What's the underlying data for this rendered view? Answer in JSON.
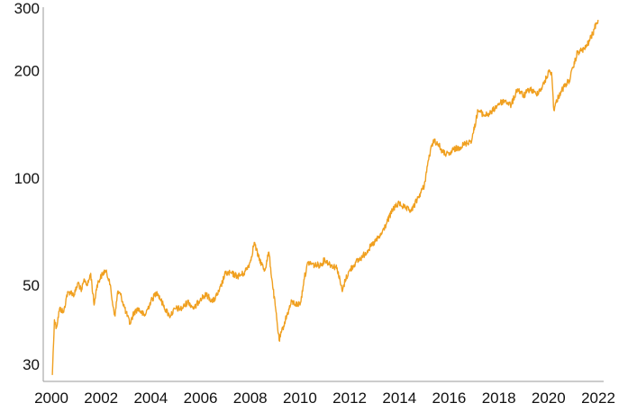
{
  "chart_data": {
    "type": "line",
    "title": "",
    "xlabel": "",
    "ylabel": "",
    "y_scale": "log",
    "ylim": [
      27,
      300
    ],
    "xlim": [
      "2000-01-01",
      "2022-03-01"
    ],
    "grid": false,
    "legend": "none",
    "x_ticks": [
      "2000",
      "2002",
      "2004",
      "2006",
      "2008",
      "2010",
      "2012",
      "2014",
      "2016",
      "2018",
      "2020",
      "2022"
    ],
    "y_ticks": [
      {
        "value": 30,
        "label": "30"
      },
      {
        "value": 50,
        "label": "50"
      },
      {
        "value": 100,
        "label": "100"
      },
      {
        "value": 200,
        "label": "200"
      },
      {
        "value": 300,
        "label": "300"
      }
    ],
    "series": [
      {
        "color": "#F0A020",
        "points": [
          [
            "2000-01-15",
            28
          ],
          [
            "2000-02-15",
            40
          ],
          [
            "2000-03-15",
            38
          ],
          [
            "2000-05-01",
            43
          ],
          [
            "2000-07-01",
            42
          ],
          [
            "2000-08-15",
            47
          ],
          [
            "2000-10-01",
            48
          ],
          [
            "2000-12-01",
            47
          ],
          [
            "2001-02-01",
            51
          ],
          [
            "2001-03-15",
            48
          ],
          [
            "2001-05-01",
            52
          ],
          [
            "2001-06-15",
            50
          ],
          [
            "2001-08-01",
            54
          ],
          [
            "2001-09-20",
            44
          ],
          [
            "2001-11-01",
            50
          ],
          [
            "2002-01-01",
            53
          ],
          [
            "2002-03-01",
            55
          ],
          [
            "2002-05-01",
            52
          ],
          [
            "2002-06-15",
            45
          ],
          [
            "2002-07-25",
            41
          ],
          [
            "2002-09-01",
            48
          ],
          [
            "2002-10-15",
            47
          ],
          [
            "2003-01-01",
            42
          ],
          [
            "2003-03-01",
            39
          ],
          [
            "2003-05-01",
            42
          ],
          [
            "2003-07-01",
            43
          ],
          [
            "2003-10-01",
            41
          ],
          [
            "2004-01-01",
            45
          ],
          [
            "2004-04-01",
            48
          ],
          [
            "2004-07-01",
            44
          ],
          [
            "2004-10-01",
            41
          ],
          [
            "2005-01-01",
            43
          ],
          [
            "2005-04-01",
            43
          ],
          [
            "2005-07-01",
            45
          ],
          [
            "2005-10-01",
            43
          ],
          [
            "2006-01-01",
            46
          ],
          [
            "2006-04-01",
            47
          ],
          [
            "2006-07-01",
            45
          ],
          [
            "2006-10-01",
            48
          ],
          [
            "2007-01-01",
            54
          ],
          [
            "2007-04-01",
            54
          ],
          [
            "2007-07-01",
            53
          ],
          [
            "2007-10-01",
            54
          ],
          [
            "2008-01-01",
            58
          ],
          [
            "2008-03-01",
            66
          ],
          [
            "2008-05-01",
            60
          ],
          [
            "2008-08-01",
            55
          ],
          [
            "2008-10-01",
            62
          ],
          [
            "2008-11-15",
            52
          ],
          [
            "2009-01-01",
            44
          ],
          [
            "2009-03-01",
            35
          ],
          [
            "2009-06-01",
            40
          ],
          [
            "2009-09-01",
            45
          ],
          [
            "2009-12-01",
            44
          ],
          [
            "2010-01-15",
            45
          ],
          [
            "2010-03-01",
            52
          ],
          [
            "2010-05-01",
            58
          ],
          [
            "2010-08-01",
            57
          ],
          [
            "2010-11-01",
            57
          ],
          [
            "2011-01-01",
            59
          ],
          [
            "2011-04-01",
            57
          ],
          [
            "2011-07-01",
            56
          ],
          [
            "2011-09-15",
            48
          ],
          [
            "2011-11-01",
            52
          ],
          [
            "2012-01-01",
            55
          ],
          [
            "2012-04-01",
            58
          ],
          [
            "2012-07-01",
            60
          ],
          [
            "2012-10-01",
            63
          ],
          [
            "2013-01-01",
            66
          ],
          [
            "2013-04-01",
            69
          ],
          [
            "2013-07-01",
            75
          ],
          [
            "2013-10-01",
            82
          ],
          [
            "2014-01-01",
            85
          ],
          [
            "2014-04-01",
            82
          ],
          [
            "2014-07-01",
            81
          ],
          [
            "2014-10-01",
            88
          ],
          [
            "2015-01-01",
            95
          ],
          [
            "2015-03-01",
            112
          ],
          [
            "2015-05-15",
            128
          ],
          [
            "2015-08-01",
            124
          ],
          [
            "2015-10-01",
            118
          ],
          [
            "2016-01-01",
            116
          ],
          [
            "2016-03-01",
            120
          ],
          [
            "2016-06-01",
            122
          ],
          [
            "2016-09-01",
            125
          ],
          [
            "2016-12-01",
            128
          ],
          [
            "2017-03-01",
            155
          ],
          [
            "2017-06-01",
            150
          ],
          [
            "2017-09-01",
            152
          ],
          [
            "2018-01-01",
            162
          ],
          [
            "2018-04-01",
            165
          ],
          [
            "2018-07-01",
            160
          ],
          [
            "2018-10-01",
            178
          ],
          [
            "2019-01-01",
            170
          ],
          [
            "2019-04-01",
            178
          ],
          [
            "2019-07-01",
            172
          ],
          [
            "2019-10-01",
            180
          ],
          [
            "2020-01-15",
            200
          ],
          [
            "2020-02-15",
            198
          ],
          [
            "2020-03-20",
            155
          ],
          [
            "2020-05-01",
            165
          ],
          [
            "2020-07-01",
            175
          ],
          [
            "2020-09-01",
            182
          ],
          [
            "2020-11-01",
            188
          ],
          [
            "2021-01-01",
            205
          ],
          [
            "2021-03-01",
            225
          ],
          [
            "2021-05-01",
            228
          ],
          [
            "2021-07-01",
            232
          ],
          [
            "2021-09-01",
            245
          ],
          [
            "2021-10-15",
            255
          ],
          [
            "2021-12-01",
            272
          ],
          [
            "2021-12-30",
            278
          ]
        ]
      }
    ]
  }
}
